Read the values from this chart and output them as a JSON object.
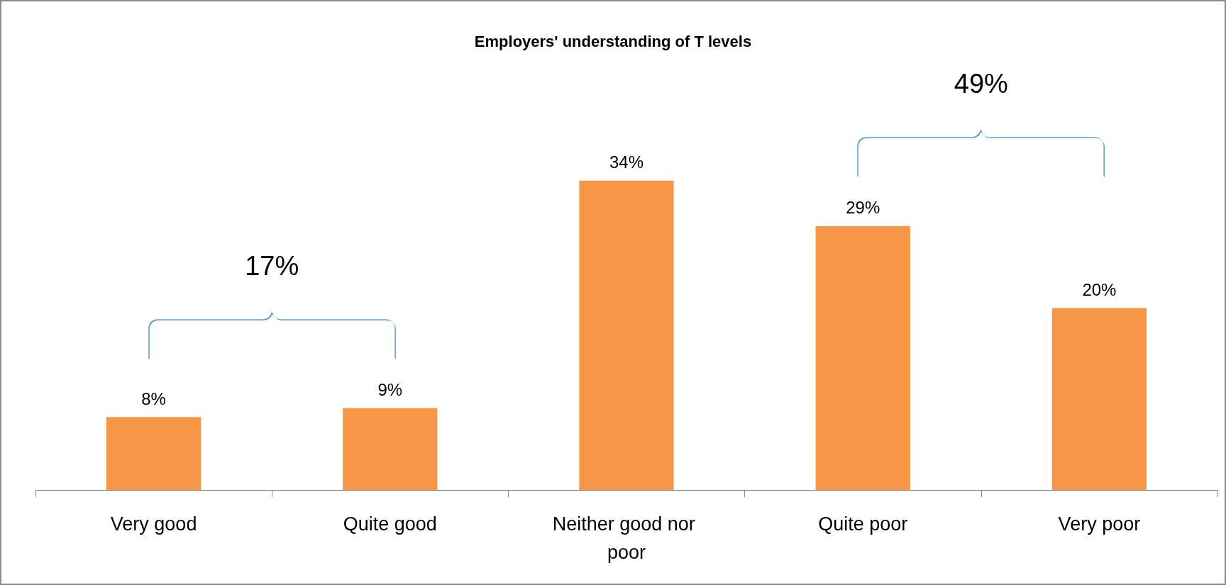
{
  "chart_data": {
    "type": "bar",
    "title": "Employers' understanding of T levels",
    "categories": [
      "Very good",
      "Quite good",
      "Neither good nor poor",
      "Quite poor",
      "Very poor"
    ],
    "values": [
      8,
      9,
      34,
      29,
      20
    ],
    "value_labels": [
      "8%",
      "9%",
      "34%",
      "29%",
      "20%"
    ],
    "color": "#f79646",
    "annotations": [
      "17%",
      "49%"
    ],
    "grid": false
  }
}
